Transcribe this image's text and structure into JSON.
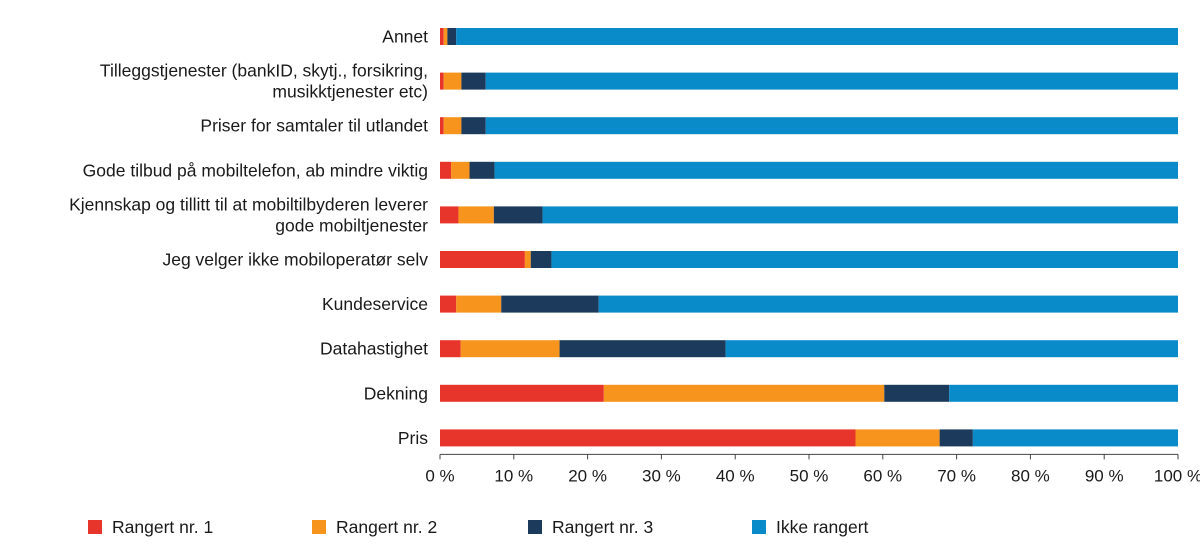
{
  "chart_data": {
    "type": "bar",
    "orientation": "horizontal",
    "stacked": true,
    "categories": [
      [
        "Annet"
      ],
      [
        "Tilleggstjenester (bankID, skytj., forsikring,",
        "musikktjenester etc)"
      ],
      [
        "Priser for samtaler til utlandet"
      ],
      [
        "Gode tilbud på mobiltelefon, ab mindre viktig"
      ],
      [
        "Kjennskap og tillitt til at mobiltilbyderen leverer",
        "gode mobiltjenester"
      ],
      [
        "Jeg velger ikke mobiloperatør selv"
      ],
      [
        "Kundeservice"
      ],
      [
        "Datahastighet"
      ],
      [
        "Dekning"
      ],
      [
        "Pris"
      ]
    ],
    "series": [
      {
        "name": "Rangert nr. 1",
        "color": "#e8352b",
        "values": [
          0.5,
          0.5,
          0.5,
          1.5,
          2.5,
          11.5,
          2.2,
          2.8,
          22.2,
          56.3
        ]
      },
      {
        "name": "Rangert nr. 2",
        "color": "#f7941d",
        "values": [
          0.5,
          2.4,
          2.4,
          2.5,
          4.8,
          0.8,
          6.1,
          13.4,
          38.0,
          11.4
        ]
      },
      {
        "name": "Rangert nr. 3",
        "color": "#1b3a5c",
        "values": [
          1.2,
          3.3,
          3.3,
          3.4,
          6.6,
          2.8,
          13.2,
          22.5,
          8.8,
          4.5
        ]
      },
      {
        "name": "Ikke rangert",
        "color": "#0a8bc9",
        "values": [
          97.8,
          93.8,
          93.8,
          92.6,
          86.1,
          84.9,
          78.5,
          61.3,
          31.0,
          27.8
        ]
      }
    ],
    "x_ticks": [
      "0 %",
      "10 %",
      "20 %",
      "30 %",
      "40 %",
      "50 %",
      "60 %",
      "70 %",
      "80 %",
      "90 %",
      "100 %"
    ],
    "xlim": [
      0,
      100
    ],
    "title": "",
    "xlabel": "",
    "ylabel": "",
    "grid": false,
    "legend_position": "bottom"
  }
}
